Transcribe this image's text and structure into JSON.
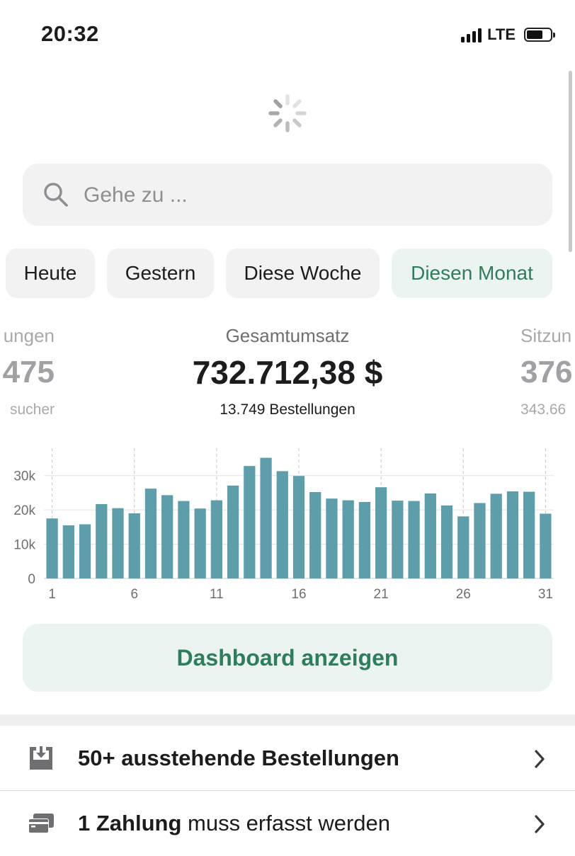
{
  "status_bar": {
    "time": "20:32",
    "network": "LTE",
    "icons": [
      "signal-bars-icon",
      "battery-icon"
    ]
  },
  "spinner": {
    "icon": "loading-spinner-icon"
  },
  "search": {
    "placeholder": "Gehe zu ...",
    "value": "",
    "icon": "search-icon"
  },
  "filters": [
    {
      "label": "Heute",
      "active": false
    },
    {
      "label": "Gestern",
      "active": false
    },
    {
      "label": "Diese Woche",
      "active": false
    },
    {
      "label": "Diesen Monat",
      "active": true
    }
  ],
  "kpis": {
    "left": {
      "label": "ungen",
      "value": "475",
      "sub": "sucher"
    },
    "main": {
      "label": "Gesamtumsatz",
      "value": "732.712,38 $",
      "sub": "13.749 Bestellungen"
    },
    "right": {
      "label": "Sitzun",
      "value": "376",
      "sub": "343.66"
    }
  },
  "chart_data": {
    "type": "bar",
    "title": "",
    "xlabel": "",
    "ylabel": "",
    "x": [
      1,
      2,
      3,
      4,
      5,
      6,
      7,
      8,
      9,
      10,
      11,
      12,
      13,
      14,
      15,
      16,
      17,
      18,
      19,
      20,
      21,
      22,
      23,
      24,
      25,
      26,
      27,
      28,
      29,
      30,
      31
    ],
    "values": [
      17500,
      15500,
      15800,
      21700,
      20500,
      19000,
      26200,
      24300,
      22600,
      20400,
      22800,
      27100,
      32800,
      35200,
      31300,
      29900,
      25200,
      23300,
      22800,
      22300,
      26600,
      22700,
      22600,
      24800,
      21300,
      18100,
      22000,
      24700,
      25400,
      25300,
      18900
    ],
    "x_tick_labels": [
      "1",
      "6",
      "11",
      "16",
      "21",
      "26",
      "31"
    ],
    "y_tick_labels": [
      "0",
      "10k",
      "20k",
      "30k"
    ],
    "ylim": [
      0,
      38000
    ],
    "grid": true,
    "bar_color": "#5d9eaa"
  },
  "dashboard_button": {
    "label": "Dashboard anzeigen"
  },
  "list_items": [
    {
      "bold": "50+ ausstehende Bestellungen",
      "rest": "",
      "icon": "inbox-download-icon"
    },
    {
      "bold": "1 Zahlung",
      "rest": " muss erfasst werden",
      "icon": "credit-card-icon"
    }
  ],
  "colors": {
    "accent_green": "#2f7d5c",
    "accent_bg": "#ebf4f0",
    "bar": "#5d9eaa"
  }
}
